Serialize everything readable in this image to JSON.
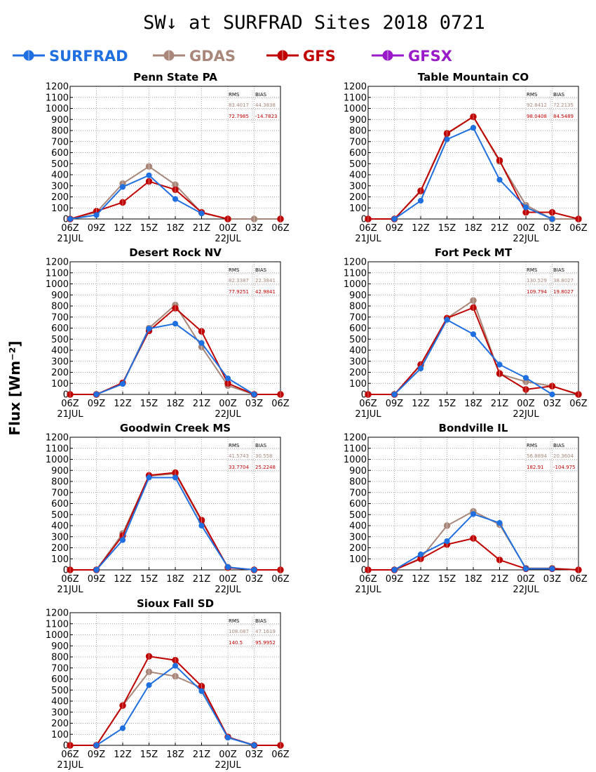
{
  "title": "SW↓ at SURFRAD Sites    2018 0721",
  "ylabel": "Flux [Wm⁻²]",
  "legend": [
    {
      "name": "SURFRAD",
      "color": "#1f6fe0"
    },
    {
      "name": "GDAS",
      "color": "#a8877a"
    },
    {
      "name": "GFS",
      "color": "#c00000"
    },
    {
      "name": "GFSX",
      "color": "#9a19c8"
    }
  ],
  "stats_header": {
    "rms": "RMS",
    "bias": "BIAS"
  },
  "chart_data": [
    {
      "type": "line",
      "title": "Penn State PA",
      "x": [
        "06Z",
        "09Z",
        "12Z",
        "15Z",
        "18Z",
        "21Z",
        "00Z",
        "03Z",
        "06Z"
      ],
      "date_labels": [
        "21JUL",
        "22JUL"
      ],
      "ylim": [
        0,
        1200
      ],
      "yticks": [
        0,
        100,
        200,
        300,
        400,
        500,
        600,
        700,
        800,
        900,
        1000,
        1100,
        1200
      ],
      "grid": true,
      "stats": {
        "GDAS": {
          "rms": "83.4017",
          "bias": "44.3838"
        },
        "GFS": {
          "rms": "72.7985",
          "bias": "-14.7823"
        }
      },
      "series": [
        {
          "name": "SURFRAD",
          "values": [
            0,
            35,
            290,
            395,
            180,
            50,
            null,
            null,
            null
          ]
        },
        {
          "name": "GDAS",
          "values": [
            0,
            60,
            320,
            475,
            310,
            55,
            0,
            0,
            0
          ]
        },
        {
          "name": "GFS",
          "values": [
            0,
            70,
            150,
            340,
            265,
            60,
            0,
            null,
            0
          ]
        }
      ]
    },
    {
      "type": "line",
      "title": "Table Mountain CO",
      "x": [
        "06Z",
        "09Z",
        "12Z",
        "15Z",
        "18Z",
        "21Z",
        "00Z",
        "03Z",
        "06Z"
      ],
      "date_labels": [
        "21JUL",
        "22JUL"
      ],
      "ylim": [
        0,
        1200
      ],
      "yticks": [
        0,
        100,
        200,
        300,
        400,
        500,
        600,
        700,
        800,
        900,
        1000,
        1100,
        1200
      ],
      "grid": true,
      "stats": {
        "GDAS": {
          "rms": "92.8412",
          "bias": "72.2135"
        },
        "GFS": {
          "rms": "98.0408",
          "bias": "84.5489"
        }
      },
      "series": [
        {
          "name": "SURFRAD",
          "values": [
            null,
            0,
            165,
            720,
            825,
            355,
            105,
            0,
            null
          ]
        },
        {
          "name": "GDAS",
          "values": [
            0,
            0,
            250,
            770,
            925,
            520,
            125,
            0,
            0
          ]
        },
        {
          "name": "GFS",
          "values": [
            0,
            0,
            255,
            775,
            925,
            530,
            60,
            60,
            0
          ]
        }
      ]
    },
    {
      "type": "line",
      "title": "Desert Rock NV",
      "x": [
        "06Z",
        "09Z",
        "12Z",
        "15Z",
        "18Z",
        "21Z",
        "00Z",
        "03Z",
        "06Z"
      ],
      "date_labels": [
        "21JUL",
        "22JUL"
      ],
      "ylim": [
        0,
        1200
      ],
      "yticks": [
        0,
        100,
        200,
        300,
        400,
        500,
        600,
        700,
        800,
        900,
        1000,
        1100,
        1200
      ],
      "grid": true,
      "stats": {
        "GDAS": {
          "rms": "82.3387",
          "bias": "22.3841"
        },
        "GFS": {
          "rms": "77.9251",
          "bias": "42.9841"
        }
      },
      "series": [
        {
          "name": "SURFRAD",
          "values": [
            null,
            0,
            95,
            595,
            640,
            465,
            145,
            0,
            null
          ]
        },
        {
          "name": "GDAS",
          "values": [
            0,
            0,
            100,
            600,
            810,
            430,
            80,
            0,
            0
          ]
        },
        {
          "name": "GFS",
          "values": [
            0,
            0,
            105,
            575,
            780,
            570,
            100,
            0,
            0
          ]
        }
      ]
    },
    {
      "type": "line",
      "title": "Fort Peck MT",
      "x": [
        "06Z",
        "09Z",
        "12Z",
        "15Z",
        "18Z",
        "21Z",
        "00Z",
        "03Z",
        "06Z"
      ],
      "date_labels": [
        "21JUL",
        "22JUL"
      ],
      "ylim": [
        0,
        1200
      ],
      "yticks": [
        0,
        100,
        200,
        300,
        400,
        500,
        600,
        700,
        800,
        900,
        1000,
        1100,
        1200
      ],
      "grid": true,
      "stats": {
        "GDAS": {
          "rms": "130.529",
          "bias": "38.8027"
        },
        "GFS": {
          "rms": "109.794",
          "bias": "19.8027"
        }
      },
      "series": [
        {
          "name": "SURFRAD",
          "values": [
            null,
            0,
            235,
            675,
            545,
            270,
            150,
            0,
            null
          ]
        },
        {
          "name": "GDAS",
          "values": [
            0,
            0,
            265,
            690,
            850,
            185,
            115,
            75,
            0
          ]
        },
        {
          "name": "GFS",
          "values": [
            0,
            0,
            270,
            690,
            785,
            190,
            45,
            75,
            0
          ]
        }
      ]
    },
    {
      "type": "line",
      "title": "Goodwin Creek MS",
      "x": [
        "06Z",
        "09Z",
        "12Z",
        "15Z",
        "18Z",
        "21Z",
        "00Z",
        "03Z",
        "06Z"
      ],
      "date_labels": [
        "21JUL",
        "22JUL"
      ],
      "ylim": [
        0,
        1200
      ],
      "yticks": [
        0,
        100,
        200,
        300,
        400,
        500,
        600,
        700,
        800,
        900,
        1000,
        1100,
        1200
      ],
      "grid": true,
      "stats": {
        "GDAS": {
          "rms": "41.5743",
          "bias": "30.558"
        },
        "GFS": {
          "rms": "33.7704",
          "bias": "25.2248"
        }
      },
      "series": [
        {
          "name": "SURFRAD",
          "values": [
            null,
            0,
            270,
            835,
            835,
            400,
            25,
            0,
            null
          ]
        },
        {
          "name": "GDAS",
          "values": [
            0,
            0,
            330,
            850,
            870,
            440,
            25,
            0,
            0
          ]
        },
        {
          "name": "GFS",
          "values": [
            0,
            0,
            310,
            855,
            880,
            450,
            20,
            0,
            0
          ]
        }
      ]
    },
    {
      "type": "line",
      "title": "Bondville IL",
      "x": [
        "06Z",
        "09Z",
        "12Z",
        "15Z",
        "18Z",
        "21Z",
        "00Z",
        "03Z",
        "06Z"
      ],
      "date_labels": [
        "21JUL",
        "22JUL"
      ],
      "ylim": [
        0,
        1200
      ],
      "yticks": [
        0,
        100,
        200,
        300,
        400,
        500,
        600,
        700,
        800,
        900,
        1000,
        1100,
        1200
      ],
      "grid": true,
      "stats": {
        "GDAS": {
          "rms": "56.8894",
          "bias": "20.3604"
        },
        "GFS": {
          "rms": "182.91",
          "bias": "-104.975"
        }
      },
      "series": [
        {
          "name": "SURFRAD",
          "values": [
            null,
            0,
            140,
            260,
            505,
            425,
            10,
            10,
            null
          ]
        },
        {
          "name": "GDAS",
          "values": [
            0,
            0,
            105,
            400,
            530,
            410,
            15,
            15,
            0
          ]
        },
        {
          "name": "GFS",
          "values": [
            0,
            0,
            100,
            230,
            285,
            90,
            10,
            10,
            0
          ]
        }
      ]
    },
    {
      "type": "line",
      "title": "Sioux Fall SD",
      "x": [
        "06Z",
        "09Z",
        "12Z",
        "15Z",
        "18Z",
        "21Z",
        "00Z",
        "03Z",
        "06Z"
      ],
      "date_labels": [
        "21JUL",
        "22JUL"
      ],
      "ylim": [
        0,
        1200
      ],
      "yticks": [
        0,
        100,
        200,
        300,
        400,
        500,
        600,
        700,
        800,
        900,
        1000,
        1100,
        1200
      ],
      "grid": true,
      "stats": {
        "GDAS": {
          "rms": "108.087",
          "bias": "47.1619"
        },
        "GFS": {
          "rms": "140.5",
          "bias": "95.9952"
        }
      },
      "series": [
        {
          "name": "SURFRAD",
          "values": [
            null,
            0,
            155,
            545,
            720,
            490,
            70,
            0,
            null
          ]
        },
        {
          "name": "GDAS",
          "values": [
            0,
            0,
            360,
            665,
            625,
            520,
            75,
            0,
            0
          ]
        },
        {
          "name": "GFS",
          "values": [
            0,
            0,
            360,
            805,
            770,
            535,
            75,
            0,
            0
          ]
        }
      ]
    }
  ]
}
